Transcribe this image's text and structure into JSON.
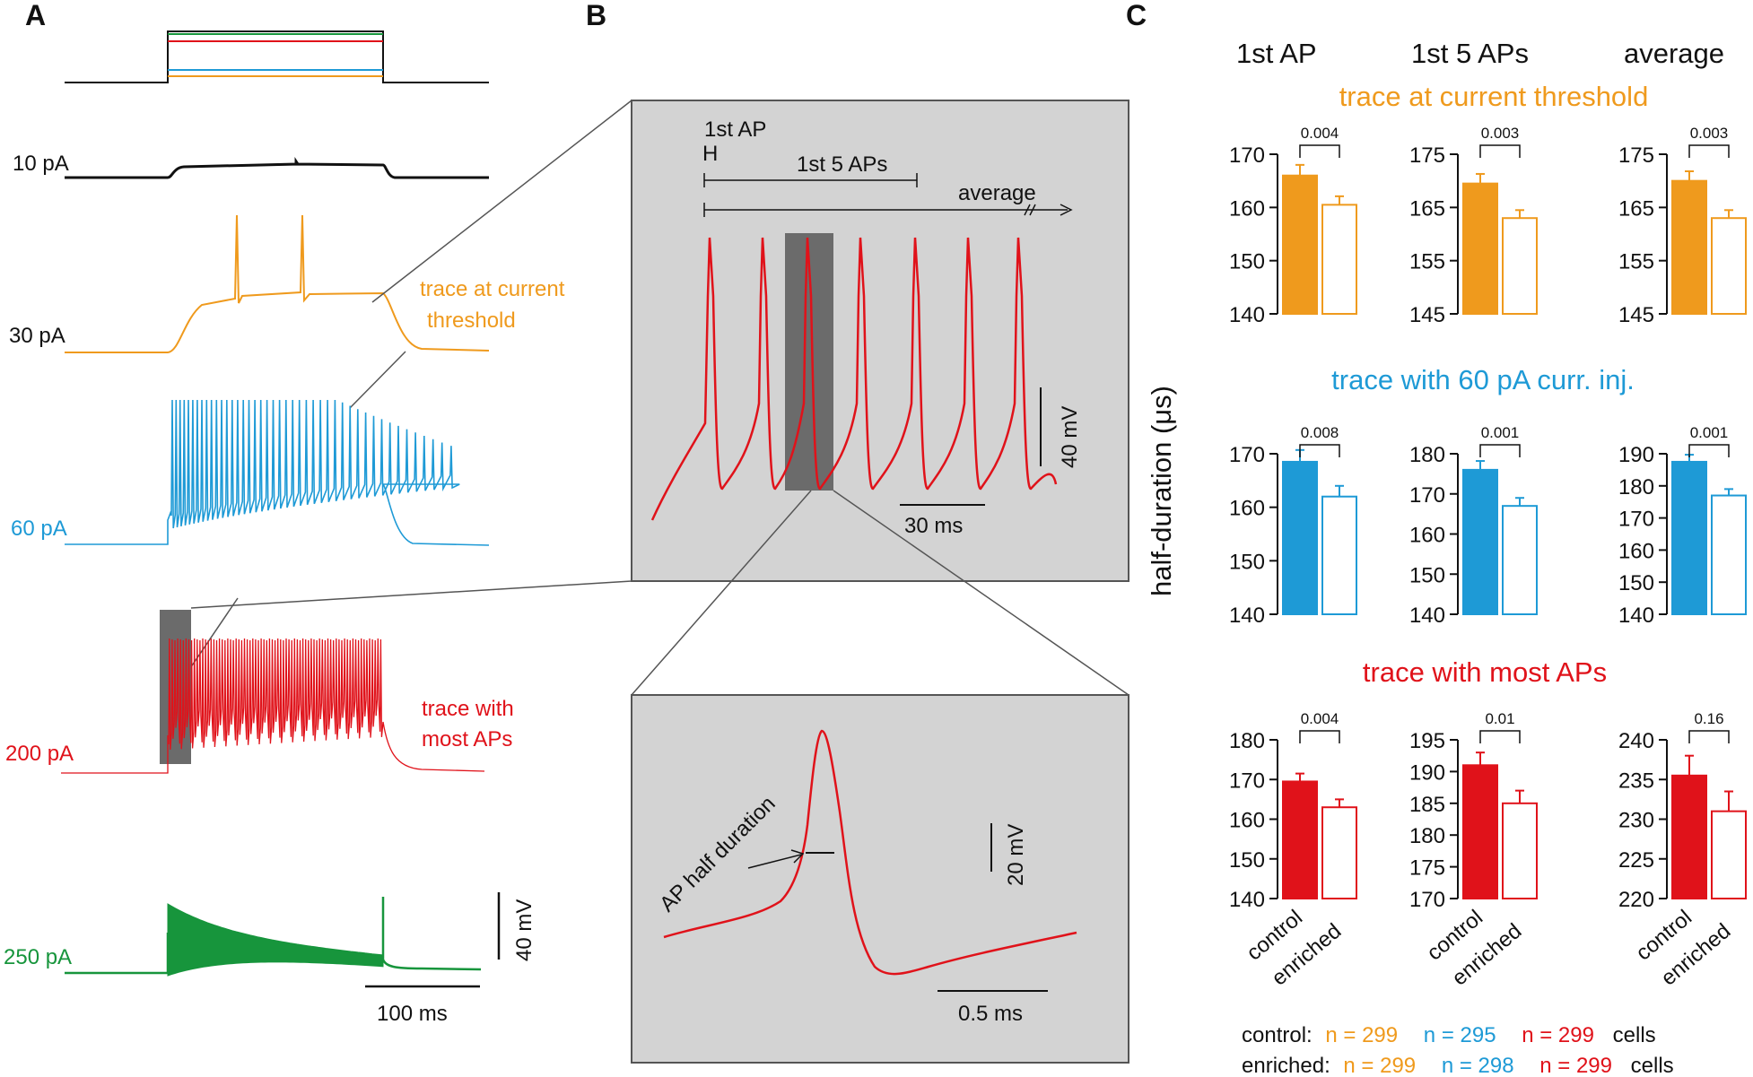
{
  "panels": {
    "a": "A",
    "b": "B",
    "c": "C"
  },
  "colors": {
    "black": "#111111",
    "orange": "#ef9a1d",
    "blue": "#1e9ad6",
    "red": "#e0121a",
    "green": "#17953c",
    "gray_box": "#d3d3d3",
    "dark_gray": "#6b6b6b"
  },
  "panel_a": {
    "traces": [
      {
        "label": "10 pA",
        "color": "black"
      },
      {
        "label": "30 pA",
        "color": "orange"
      },
      {
        "label": "60 pA",
        "color": "blue"
      },
      {
        "label": "200 pA",
        "color": "red"
      },
      {
        "label": "250 pA",
        "color": "green"
      }
    ],
    "annot_threshold": [
      "trace at current",
      "threshold"
    ],
    "annot_most": [
      "trace with",
      "most APs"
    ],
    "scale_v": "40 mV",
    "scale_t": "100 ms"
  },
  "panel_b": {
    "first_ap": "1st AP",
    "first_ap_mark": "H",
    "first5": "1st 5 APs",
    "average": "average",
    "scale_v": "40 mV",
    "scale_t": "30 ms",
    "inset_label": "AP half duration",
    "inset_scale_v": "20 mV",
    "inset_scale_t": "0.5 ms"
  },
  "panel_c": {
    "column_headers": [
      "1st AP",
      "1st 5 APs",
      "average"
    ],
    "ylabel": "half-duration (μs)",
    "xcategories": [
      "control",
      "enriched"
    ],
    "n_control": {
      "label": "control:",
      "orange": "n = 299",
      "blue": "n = 295",
      "red": "n = 299",
      "unit": "cells"
    },
    "n_enriched": {
      "label": "enriched:",
      "orange": "n = 299",
      "blue": "n = 298",
      "red": "n = 299",
      "unit": "cells"
    }
  },
  "chart_data": [
    {
      "type": "bar",
      "row": 0,
      "col": 0,
      "row_title": "trace at current threshold",
      "color": "orange",
      "categories": [
        "control",
        "enriched"
      ],
      "values": [
        166,
        160.5
      ],
      "errors": [
        2,
        1.6
      ],
      "ylim": [
        140,
        170
      ],
      "yticks": [
        140,
        150,
        160,
        170
      ],
      "p": "0.004"
    },
    {
      "type": "bar",
      "row": 0,
      "col": 1,
      "color": "orange",
      "categories": [
        "control",
        "enriched"
      ],
      "values": [
        169.5,
        163
      ],
      "errors": [
        1.8,
        1.5
      ],
      "ylim": [
        145,
        175
      ],
      "yticks": [
        145,
        155,
        165,
        175
      ],
      "p": "0.003"
    },
    {
      "type": "bar",
      "row": 0,
      "col": 2,
      "color": "orange",
      "categories": [
        "control",
        "enriched"
      ],
      "values": [
        170,
        163
      ],
      "errors": [
        1.8,
        1.5
      ],
      "ylim": [
        145,
        175
      ],
      "yticks": [
        145,
        155,
        165,
        175
      ],
      "p": "0.003"
    },
    {
      "type": "bar",
      "row": 1,
      "col": 0,
      "row_title": "trace with 60 pA curr.  inj.",
      "color": "blue",
      "categories": [
        "control",
        "enriched"
      ],
      "values": [
        168.5,
        162
      ],
      "errors": [
        2.2,
        2
      ],
      "ylim": [
        140,
        170
      ],
      "yticks": [
        140,
        150,
        160,
        170
      ],
      "p": "0.008"
    },
    {
      "type": "bar",
      "row": 1,
      "col": 1,
      "color": "blue",
      "categories": [
        "control",
        "enriched"
      ],
      "values": [
        176,
        167
      ],
      "errors": [
        2.2,
        2
      ],
      "ylim": [
        140,
        180
      ],
      "yticks": [
        140,
        150,
        160,
        170,
        180
      ],
      "p": "0.001"
    },
    {
      "type": "bar",
      "row": 1,
      "col": 2,
      "color": "blue",
      "categories": [
        "control",
        "enriched"
      ],
      "values": [
        187.5,
        177
      ],
      "errors": [
        2.2,
        2
      ],
      "ylim": [
        140,
        190
      ],
      "yticks": [
        140,
        150,
        160,
        170,
        180,
        190
      ],
      "p": "0.001"
    },
    {
      "type": "bar",
      "row": 2,
      "col": 0,
      "row_title": "trace with most APs",
      "color": "red",
      "categories": [
        "control",
        "enriched"
      ],
      "values": [
        169.5,
        163
      ],
      "errors": [
        2,
        2
      ],
      "ylim": [
        140,
        180
      ],
      "yticks": [
        140,
        150,
        160,
        170,
        180
      ],
      "p": "0.004"
    },
    {
      "type": "bar",
      "row": 2,
      "col": 1,
      "color": "red",
      "categories": [
        "control",
        "enriched"
      ],
      "values": [
        191,
        185
      ],
      "errors": [
        2,
        2
      ],
      "ylim": [
        170,
        195
      ],
      "yticks": [
        170,
        175,
        180,
        185,
        190,
        195
      ],
      "p": "0.01"
    },
    {
      "type": "bar",
      "row": 2,
      "col": 2,
      "color": "red",
      "categories": [
        "control",
        "enriched"
      ],
      "values": [
        235.5,
        231
      ],
      "errors": [
        2.5,
        2.5
      ],
      "ylim": [
        220,
        240
      ],
      "yticks": [
        220,
        225,
        230,
        235,
        240
      ],
      "p": "0.16"
    }
  ]
}
